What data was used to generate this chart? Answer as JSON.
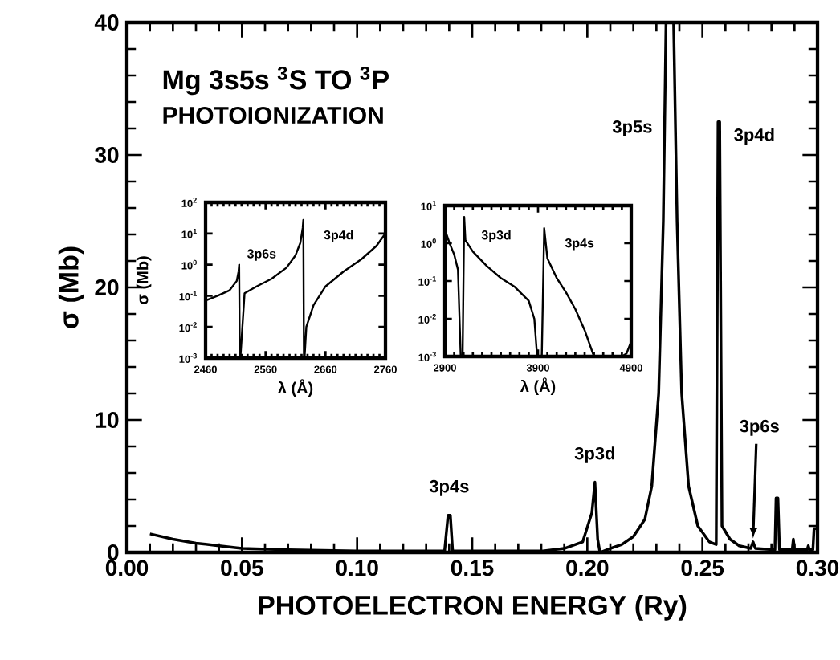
{
  "chart_data": [
    {
      "type": "line",
      "title": "Mg 3s5s $^{3}$S  TO  $^{3}$P",
      "subtitle": "PHOTOIONIZATION",
      "xlabel": "PHOTOELECTRON ENERGY (Ry)",
      "ylabel": "σ (Mb)",
      "xlim": [
        0,
        0.3
      ],
      "ylim": [
        0,
        40
      ],
      "xticks": [
        {
          "value": 0,
          "label": "0.00"
        },
        {
          "value": 0.05,
          "label": "0.05"
        },
        {
          "value": 0.1,
          "label": "0.10"
        },
        {
          "value": 0.15,
          "label": "0.15"
        },
        {
          "value": 0.2,
          "label": "0.20"
        },
        {
          "value": 0.25,
          "label": "0.25"
        },
        {
          "value": 0.3,
          "label": "0.30"
        }
      ],
      "yticks": [
        0,
        10,
        20,
        30,
        40
      ],
      "series": [
        {
          "color": "#000000",
          "x": [
            0.01,
            0.02,
            0.03,
            0.04,
            0.05,
            0.07,
            0.1,
            0.13,
            0.138,
            0.1395,
            0.1405,
            0.1415,
            0.16,
            0.18,
            0.19,
            0.198,
            0.202,
            0.2033,
            0.2045,
            0.2055,
            0.21,
            0.215,
            0.22,
            0.225,
            0.228,
            0.231,
            0.233,
            0.2342,
            0.2375,
            0.239,
            0.241,
            0.244,
            0.248,
            0.253,
            0.256,
            0.2568,
            0.2575,
            0.2585,
            0.262,
            0.266,
            0.271,
            0.272,
            0.273,
            0.2815,
            0.282,
            0.2828,
            0.2835,
            0.289,
            0.2895,
            0.29,
            0.2955,
            0.296,
            0.2965,
            0.298,
            0.2985,
            0.3
          ],
          "values": [
            1.4,
            1.0,
            0.7,
            0.5,
            0.3,
            0.2,
            0.1,
            0.1,
            0.1,
            2.8,
            2.8,
            0.1,
            0.1,
            0.1,
            0.3,
            0.8,
            3,
            5.3,
            1,
            0,
            0.3,
            0.6,
            1.2,
            2.5,
            5,
            12,
            25,
            40,
            40,
            25,
            12,
            5,
            2,
            0.8,
            0.6,
            32.5,
            32.5,
            2,
            1,
            0.5,
            0.3,
            0.8,
            0.3,
            0.2,
            4.1,
            4.1,
            0.2,
            0.2,
            1.0,
            0.2,
            0.2,
            0.5,
            0.2,
            0.2,
            1.8,
            1.8
          ]
        }
      ],
      "annotations": [
        {
          "text": "3p4s",
          "x": 0.14,
          "y": 2.8
        },
        {
          "text": "3p3d",
          "x": 0.2033,
          "y": 5.3
        },
        {
          "text": "3p5s",
          "x": 0.2335,
          "y": 32
        },
        {
          "text": "3p4d",
          "x": 0.2572,
          "y": 32.5
        },
        {
          "text": "3p6s",
          "x": 0.272,
          "y": 0.8
        }
      ]
    },
    {
      "type": "line",
      "xlabel": "λ (Å)",
      "ylabel": "σ (Mb)",
      "log": "y",
      "xlim": [
        2460,
        2760
      ],
      "ylim": [
        0.001,
        100
      ],
      "xticks": [
        2460,
        2560,
        2660,
        2760
      ],
      "yticks": [
        {
          "value": 0.001,
          "label": "10$^{-3}$"
        },
        {
          "value": 0.01,
          "label": "10$^{-2}$"
        },
        {
          "value": 0.1,
          "label": "10$^{-1}$"
        },
        {
          "value": 1,
          "label": "10$^{0}$"
        },
        {
          "value": 10,
          "label": "10$^{1}$"
        },
        {
          "value": 100,
          "label": "10$^{2}$"
        }
      ],
      "series": [
        {
          "color": "#000000",
          "x": [
            2460,
            2480,
            2500,
            2512,
            2515,
            2516,
            2517,
            2518,
            2525,
            2545,
            2570,
            2595,
            2610,
            2618,
            2622,
            2623,
            2624,
            2625,
            2628,
            2640,
            2660,
            2690,
            2720,
            2745,
            2760
          ],
          "values": [
            0.07,
            0.1,
            0.15,
            0.3,
            0.6,
            1,
            0.001,
            0.001,
            0.12,
            0.2,
            0.35,
            0.8,
            2,
            5,
            15,
            27,
            0.001,
            0.001,
            0.01,
            0.05,
            0.2,
            0.6,
            1.5,
            4,
            10
          ]
        }
      ],
      "annotations": [
        {
          "text": "3p6s",
          "x": 2516,
          "y": 1
        },
        {
          "text": "3p4d",
          "x": 2623,
          "y": 27
        }
      ]
    },
    {
      "type": "line",
      "xlabel": "λ (Å)",
      "log": "y",
      "xlim": [
        2900,
        4900
      ],
      "ylim": [
        0.001,
        10
      ],
      "xticks": [
        2900,
        3900,
        4900
      ],
      "yticks": [
        {
          "value": 0.001,
          "label": "10$^{-3}$"
        },
        {
          "value": 0.01,
          "label": "10$^{-2}$"
        },
        {
          "value": 0.1,
          "label": "10$^{-1}$"
        },
        {
          "value": 1,
          "label": "10$^{0}$"
        },
        {
          "value": 10,
          "label": "10$^{1}$"
        }
      ],
      "series": [
        {
          "color": "#000000",
          "x": [
            2900,
            2950,
            3000,
            3040,
            3070,
            3090,
            3107,
            3120,
            3200,
            3350,
            3500,
            3650,
            3800,
            3860,
            3890,
            3940,
            3966,
            4000,
            4100,
            4200,
            4300,
            4400,
            4500,
            4800,
            4850,
            4900
          ],
          "values": [
            2.3,
            1,
            0.5,
            0.2,
            0.001,
            0.001,
            5,
            1.2,
            0.6,
            0.25,
            0.12,
            0.07,
            0.03,
            0.01,
            0.001,
            0.001,
            2.5,
            0.4,
            0.12,
            0.05,
            0.018,
            0.005,
            0.001,
            0.001,
            0.0012,
            0.0025
          ]
        }
      ],
      "annotations": [
        {
          "text": "3p3d",
          "x": 3107,
          "y": 5
        },
        {
          "text": "3p4s",
          "x": 3966,
          "y": 2.5
        }
      ]
    }
  ]
}
